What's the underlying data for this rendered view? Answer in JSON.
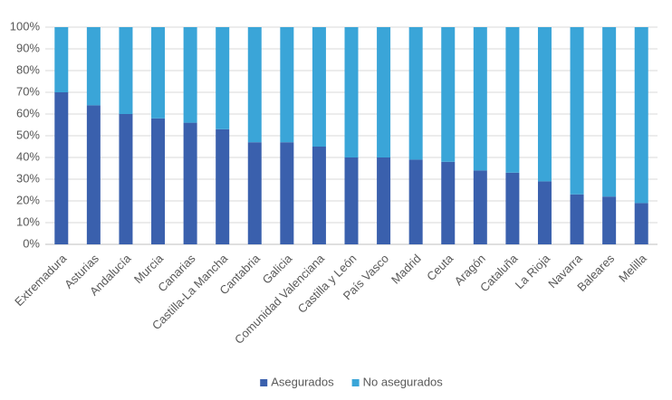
{
  "chart_data": {
    "type": "stacked_bar",
    "categories": [
      "Extremadura",
      "Asturias",
      "Andalucía",
      "Murcia",
      "Canarias",
      "Castilla-La Mancha",
      "Cantabria",
      "Galicia",
      "Comunidad Valenciana",
      "Castilla y León",
      "País Vasco",
      "Madrid",
      "Ceuta",
      "Aragón",
      "Cataluña",
      "La Rioja",
      "Navarra",
      "Baleares",
      "Melilla"
    ],
    "series": [
      {
        "name": "Asegurados",
        "color": "#3a60ad",
        "values": [
          70,
          64,
          60,
          58,
          56,
          53,
          47,
          47,
          45,
          40,
          40,
          39,
          38,
          34,
          33,
          29,
          23,
          22,
          19
        ]
      },
      {
        "name": "No asegurados",
        "color": "#3aa5d8",
        "values": [
          30,
          36,
          40,
          42,
          44,
          47,
          53,
          53,
          55,
          60,
          60,
          61,
          62,
          66,
          67,
          71,
          77,
          78,
          81
        ]
      }
    ],
    "ylim": [
      0,
      100
    ],
    "yticks": [
      {
        "value": 0,
        "label": "0%"
      },
      {
        "value": 10,
        "label": "10%"
      },
      {
        "value": 20,
        "label": "20%"
      },
      {
        "value": 30,
        "label": "30%"
      },
      {
        "value": 40,
        "label": "40%"
      },
      {
        "value": 50,
        "label": "50%"
      },
      {
        "value": 60,
        "label": "60%"
      },
      {
        "value": 70,
        "label": "70%"
      },
      {
        "value": 80,
        "label": "80%"
      },
      {
        "value": 90,
        "label": "90%"
      },
      {
        "value": 100,
        "label": "100%"
      }
    ],
    "grid": true,
    "legend": "bottom"
  }
}
